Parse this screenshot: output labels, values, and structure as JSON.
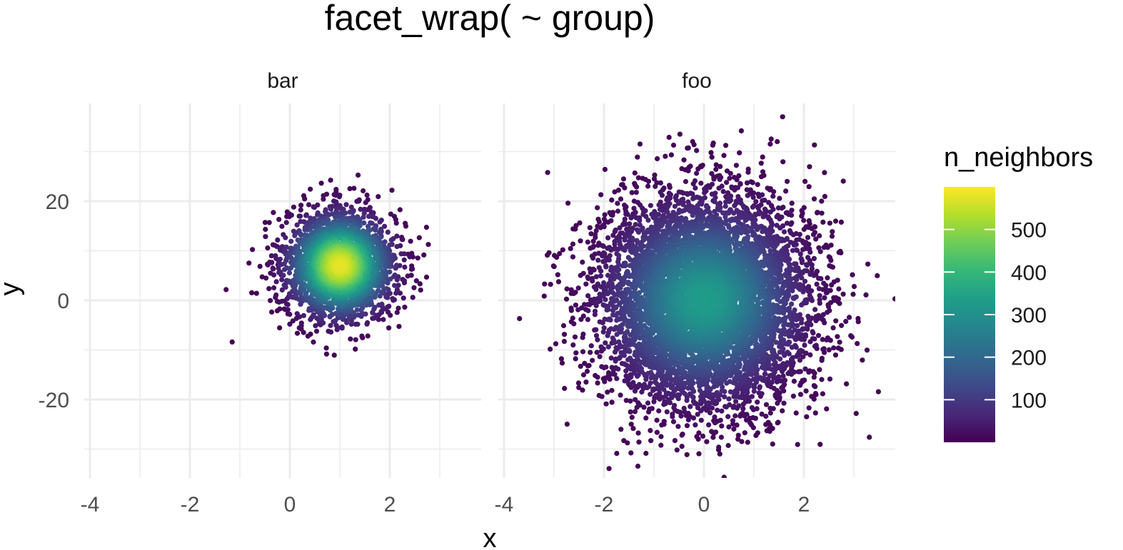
{
  "chart_data": {
    "type": "scatter",
    "title": "facet_wrap( ~ group)",
    "xlabel": "x",
    "ylabel": "y",
    "xlim": [
      -4.3,
      3.8
    ],
    "ylim": [
      -36,
      39
    ],
    "x_ticks": [
      -4,
      -2,
      0,
      2
    ],
    "x_tick_labels": [
      "-4",
      "-2",
      "0",
      "2"
    ],
    "y_ticks": [
      -20,
      0,
      20
    ],
    "y_tick_labels": [
      "-20",
      "0",
      "20"
    ],
    "grid": true,
    "facets": [
      {
        "label": "bar",
        "center": [
          1,
          7
        ],
        "spread": [
          0.55,
          5.5
        ],
        "n_points": 2600,
        "peak_neighbors": 580
      },
      {
        "label": "foo",
        "center": [
          0,
          0
        ],
        "spread": [
          1.05,
          10.5
        ],
        "n_points": 7000,
        "peak_neighbors": 330
      }
    ],
    "color_scale": {
      "title": "n_neighbors",
      "palette": "viridis",
      "range": [
        0,
        600
      ],
      "ticks": [
        100,
        200,
        300,
        400,
        500
      ],
      "tick_labels": [
        "100",
        "200",
        "300",
        "400",
        "500"
      ],
      "colors": [
        "#440154",
        "#482878",
        "#3E4A89",
        "#31688E",
        "#26828E",
        "#1F9E89",
        "#35B779",
        "#6DCD59",
        "#B4DE2C",
        "#FDE725"
      ]
    },
    "legend_position": "right"
  }
}
